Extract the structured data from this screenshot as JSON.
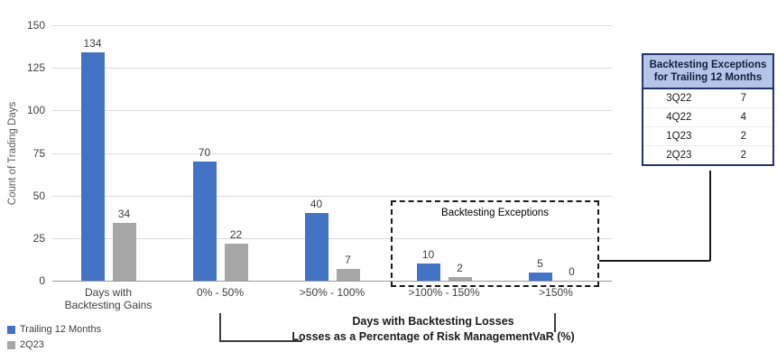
{
  "chart_data": {
    "type": "bar",
    "title": "",
    "ylabel": "Count of Trading Days",
    "xlabel_lines": [
      "Days with Backtesting Losses",
      "Losses as a Percentage of Risk ManagementVaR (%)"
    ],
    "ylim": [
      0,
      150
    ],
    "yticks": [
      0,
      25,
      50,
      75,
      100,
      125,
      150
    ],
    "categories": [
      "Days with Backtesting Gains",
      "0% - 50%",
      ">50% - 100%",
      ">100% - 150%",
      ">150%"
    ],
    "series": [
      {
        "name": "Trailing 12 Months",
        "color": "#4472C4",
        "values": [
          134,
          70,
          40,
          10,
          5
        ]
      },
      {
        "name": "2Q23",
        "color": "#A6A6A6",
        "values": [
          34,
          22,
          7,
          2,
          0
        ]
      }
    ],
    "grid": "horizontal",
    "legend_position": "bottom-left",
    "annotation_box_label": "Backtesting Exceptions"
  },
  "legend": {
    "items": [
      {
        "label": "Trailing 12 Months",
        "color": "#4472C4"
      },
      {
        "label": "2Q23",
        "color": "#A6A6A6"
      }
    ]
  },
  "table": {
    "title_lines": [
      "Backtesting Exceptions",
      "for Trailing 12 Months"
    ],
    "rows": [
      [
        "3Q22",
        "7"
      ],
      [
        "4Q22",
        "4"
      ],
      [
        "1Q23",
        "2"
      ],
      [
        "2Q23",
        "2"
      ]
    ],
    "header_bg": "#B4C6E7",
    "border_color": "#24356B"
  },
  "colors": {
    "primary_series": "#4472C4",
    "secondary_series": "#A6A6A6",
    "gridline": "#DCDCDC"
  }
}
